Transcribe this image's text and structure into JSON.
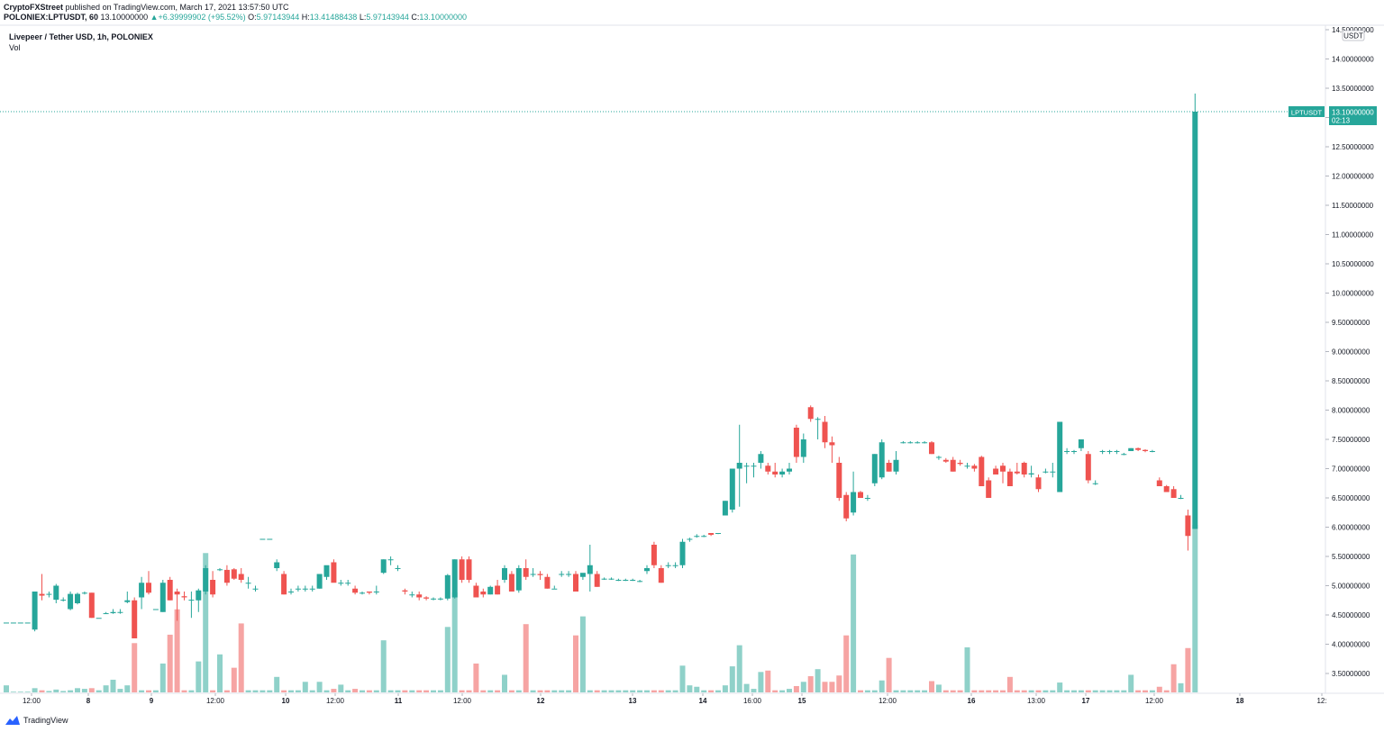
{
  "header": {
    "author": "CryptoFXStreet",
    "published": "published on TradingView.com, March 17, 2021 13:57:50 UTC"
  },
  "ohlc": {
    "symbol": "POLONIEX:LPTUSDT, 60",
    "last": "13.10000000",
    "change": "+6.39999902 (+95.52%)",
    "o_label": "O:",
    "o": "5.97143944",
    "h_label": "H:",
    "h": "13.41488438",
    "l_label": "L:",
    "l": "5.97143944",
    "c_label": "C:",
    "c": "13.10000000"
  },
  "legend": {
    "title": "Livepeer / Tether USD, 1h, POLONIEX",
    "volume_label": "Vol"
  },
  "footer": {
    "brand": "TradingView"
  },
  "price_tag": {
    "symbol": "LPTUSDT",
    "price": "13.10000000",
    "countdown": "02:13"
  },
  "colors": {
    "up": "#26a69a",
    "down": "#ef5350",
    "vol_up": "#8fd1c9",
    "vol_down": "#f6a4a3",
    "axis_text": "#131722"
  },
  "chart_data": {
    "type": "candlestick",
    "currency_label": "USDT",
    "y_ticks": [
      "14.50000000",
      "14.00000000",
      "13.50000000",
      "13.00000000",
      "12.50000000",
      "12.00000000",
      "11.50000000",
      "11.00000000",
      "10.50000000",
      "10.00000000",
      "9.50000000",
      "9.00000000",
      "8.50000000",
      "8.00000000",
      "7.50000000",
      "7.00000000",
      "6.50000000",
      "6.00000000",
      "5.50000000",
      "5.00000000",
      "4.50000000",
      "4.00000000",
      "3.50000000"
    ],
    "x_ticks": [
      "12:00",
      "8",
      "9",
      "12:00",
      "10",
      "12:00",
      "11",
      "12:00",
      "12",
      "13",
      "14",
      "16:00",
      "15",
      "12:00",
      "16",
      "13:00",
      "17",
      "12:00",
      "18",
      "12:"
    ],
    "series": [
      {
        "o": 4.37,
        "h": 4.37,
        "l": 4.37,
        "c": 4.37,
        "v": 1
      },
      {
        "o": 4.37,
        "h": 4.37,
        "l": 4.37,
        "c": 4.37,
        "v": 0.1
      },
      {
        "o": 4.37,
        "h": 4.37,
        "l": 4.37,
        "c": 4.37,
        "v": 0.1
      },
      {
        "o": 4.37,
        "h": 4.37,
        "l": 4.37,
        "c": 4.37,
        "v": 0.1
      },
      {
        "o": 4.25,
        "h": 4.9,
        "l": 4.22,
        "c": 4.9,
        "v": 0.6
      },
      {
        "o": 4.86,
        "h": 5.2,
        "l": 4.75,
        "c": 4.83,
        "v": 0.3
      },
      {
        "o": 4.86,
        "h": 4.9,
        "l": 4.8,
        "c": 4.86,
        "v": 0.2
      },
      {
        "o": 4.76,
        "h": 5.03,
        "l": 4.7,
        "c": 5.0,
        "v": 0.4
      },
      {
        "o": 4.76,
        "h": 4.8,
        "l": 4.73,
        "c": 4.76,
        "v": 0.2
      },
      {
        "o": 4.6,
        "h": 4.9,
        "l": 4.58,
        "c": 4.86,
        "v": 0.3
      },
      {
        "o": 4.7,
        "h": 4.88,
        "l": 4.68,
        "c": 4.86,
        "v": 0.6
      },
      {
        "o": 4.88,
        "h": 4.9,
        "l": 4.85,
        "c": 4.88,
        "v": 0.5
      },
      {
        "o": 4.88,
        "h": 4.88,
        "l": 4.45,
        "c": 4.45,
        "v": 0.6
      },
      {
        "o": 4.45,
        "h": 4.45,
        "l": 4.45,
        "c": 4.45,
        "v": 0.3
      },
      {
        "o": 4.53,
        "h": 4.55,
        "l": 4.52,
        "c": 4.53,
        "v": 1
      },
      {
        "o": 4.53,
        "h": 4.6,
        "l": 4.52,
        "c": 4.55,
        "v": 1.8
      },
      {
        "o": 4.55,
        "h": 4.6,
        "l": 4.52,
        "c": 4.55,
        "v": 0.5
      },
      {
        "o": 4.72,
        "h": 4.9,
        "l": 4.7,
        "c": 4.75,
        "v": 1
      },
      {
        "o": 4.75,
        "h": 4.8,
        "l": 4.1,
        "c": 4.1,
        "v": 7
      },
      {
        "o": 4.8,
        "h": 5.15,
        "l": 4.6,
        "c": 5.05,
        "v": 0.3
      },
      {
        "o": 5.05,
        "h": 5.25,
        "l": 4.85,
        "c": 4.88,
        "v": 0.3
      },
      {
        "o": 4.6,
        "h": 4.6,
        "l": 4.6,
        "c": 4.6,
        "v": 0.3
      },
      {
        "o": 4.55,
        "h": 5.1,
        "l": 4.55,
        "c": 5.05,
        "v": 4.1
      },
      {
        "o": 5.1,
        "h": 5.15,
        "l": 4.75,
        "c": 4.75,
        "v": 8.2
      },
      {
        "o": 4.9,
        "h": 4.95,
        "l": 4.4,
        "c": 4.85,
        "v": 11.8
      },
      {
        "o": 4.82,
        "h": 4.9,
        "l": 4.75,
        "c": 4.8,
        "v": 0.3
      },
      {
        "o": 4.75,
        "h": 4.9,
        "l": 4.45,
        "c": 4.76,
        "v": 0.3
      },
      {
        "o": 4.75,
        "h": 4.95,
        "l": 4.55,
        "c": 4.92,
        "v": 4.4
      },
      {
        "o": 4.9,
        "h": 5.35,
        "l": 4.85,
        "c": 5.3,
        "v": 19.8
      },
      {
        "o": 5.1,
        "h": 5.25,
        "l": 4.8,
        "c": 4.85,
        "v": 0.3
      },
      {
        "o": 5.28,
        "h": 5.3,
        "l": 5.25,
        "c": 5.28,
        "v": 5.4
      },
      {
        "o": 5.27,
        "h": 5.35,
        "l": 5.0,
        "c": 5.05,
        "v": 0.3
      },
      {
        "o": 5.28,
        "h": 5.3,
        "l": 5.1,
        "c": 5.12,
        "v": 3.5
      },
      {
        "o": 5.2,
        "h": 5.3,
        "l": 5.05,
        "c": 5.1,
        "v": 9.8
      },
      {
        "o": 5.05,
        "h": 5.15,
        "l": 4.95,
        "c": 5.05,
        "v": 0.3
      },
      {
        "o": 4.95,
        "h": 5.0,
        "l": 4.9,
        "c": 4.95,
        "v": 0.3
      },
      {
        "o": 5.8,
        "h": 5.8,
        "l": 5.8,
        "c": 5.8,
        "v": 0.3
      },
      {
        "o": 5.8,
        "h": 5.8,
        "l": 5.8,
        "c": 5.8,
        "v": 0.3
      },
      {
        "o": 5.3,
        "h": 5.45,
        "l": 5.25,
        "c": 5.4,
        "v": 2.2
      },
      {
        "o": 5.2,
        "h": 5.25,
        "l": 4.85,
        "c": 4.85,
        "v": 0.3
      },
      {
        "o": 4.9,
        "h": 4.95,
        "l": 4.85,
        "c": 4.9,
        "v": 0.3
      },
      {
        "o": 4.95,
        "h": 5.0,
        "l": 4.9,
        "c": 4.95,
        "v": 0.3
      },
      {
        "o": 4.95,
        "h": 5.0,
        "l": 4.9,
        "c": 4.95,
        "v": 1.5
      },
      {
        "o": 4.95,
        "h": 5.0,
        "l": 4.9,
        "c": 4.95,
        "v": 0.3
      },
      {
        "o": 4.95,
        "h": 5.2,
        "l": 4.95,
        "c": 5.2,
        "v": 1.5
      },
      {
        "o": 5.15,
        "h": 5.3,
        "l": 5.1,
        "c": 5.35,
        "v": 0.3
      },
      {
        "o": 5.4,
        "h": 5.45,
        "l": 5.1,
        "c": 5.05,
        "v": 0.5
      },
      {
        "o": 5.05,
        "h": 5.1,
        "l": 5.0,
        "c": 5.05,
        "v": 1.1
      },
      {
        "o": 5.05,
        "h": 5.1,
        "l": 5.0,
        "c": 5.05,
        "v": 0.3
      },
      {
        "o": 4.95,
        "h": 5.0,
        "l": 4.85,
        "c": 4.88,
        "v": 0.5
      },
      {
        "o": 4.88,
        "h": 4.9,
        "l": 4.85,
        "c": 4.88,
        "v": 0.3
      },
      {
        "o": 4.9,
        "h": 4.9,
        "l": 4.85,
        "c": 4.88,
        "v": 0.3
      },
      {
        "o": 4.9,
        "h": 5.0,
        "l": 4.85,
        "c": 4.9,
        "v": 0.3
      },
      {
        "o": 5.22,
        "h": 5.45,
        "l": 5.2,
        "c": 5.45,
        "v": 7.4
      },
      {
        "o": 5.45,
        "h": 5.5,
        "l": 5.35,
        "c": 5.45,
        "v": 0.3
      },
      {
        "o": 5.3,
        "h": 5.35,
        "l": 5.25,
        "c": 5.3,
        "v": 0.3
      },
      {
        "o": 4.92,
        "h": 4.95,
        "l": 4.85,
        "c": 4.9,
        "v": 0.3
      },
      {
        "o": 4.85,
        "h": 4.9,
        "l": 4.8,
        "c": 4.85,
        "v": 0.3
      },
      {
        "o": 4.85,
        "h": 4.9,
        "l": 4.75,
        "c": 4.8,
        "v": 0.3
      },
      {
        "o": 4.8,
        "h": 4.82,
        "l": 4.75,
        "c": 4.78,
        "v": 0.3
      },
      {
        "o": 4.78,
        "h": 4.8,
        "l": 4.75,
        "c": 4.78,
        "v": 0.3
      },
      {
        "o": 4.78,
        "h": 4.8,
        "l": 4.75,
        "c": 4.78,
        "v": 0.3
      },
      {
        "o": 4.78,
        "h": 5.2,
        "l": 4.75,
        "c": 5.18,
        "v": 9.3
      },
      {
        "o": 4.8,
        "h": 5.45,
        "l": 4.78,
        "c": 5.45,
        "v": 14.2
      },
      {
        "o": 5.45,
        "h": 5.5,
        "l": 5.05,
        "c": 5.1,
        "v": 0.3
      },
      {
        "o": 5.45,
        "h": 5.5,
        "l": 5.05,
        "c": 5.1,
        "v": 0.3
      },
      {
        "o": 5.0,
        "h": 5.05,
        "l": 4.8,
        "c": 4.8,
        "v": 4.1
      },
      {
        "o": 4.9,
        "h": 4.95,
        "l": 4.8,
        "c": 4.85,
        "v": 0.3
      },
      {
        "o": 4.85,
        "h": 5.0,
        "l": 4.85,
        "c": 4.98,
        "v": 0.3
      },
      {
        "o": 5.0,
        "h": 5.1,
        "l": 4.85,
        "c": 4.85,
        "v": 0.3
      },
      {
        "o": 5.1,
        "h": 5.35,
        "l": 5.05,
        "c": 5.3,
        "v": 2.5
      },
      {
        "o": 5.2,
        "h": 5.25,
        "l": 4.9,
        "c": 4.9,
        "v": 0.3
      },
      {
        "o": 4.92,
        "h": 5.35,
        "l": 4.88,
        "c": 5.3,
        "v": 0.3
      },
      {
        "o": 5.3,
        "h": 5.45,
        "l": 5.1,
        "c": 5.15,
        "v": 9.7
      },
      {
        "o": 5.2,
        "h": 5.3,
        "l": 5.15,
        "c": 5.2,
        "v": 0.3
      },
      {
        "o": 5.2,
        "h": 5.25,
        "l": 5.1,
        "c": 5.18,
        "v": 0.3
      },
      {
        "o": 5.15,
        "h": 5.2,
        "l": 4.95,
        "c": 4.95,
        "v": 0.3
      },
      {
        "o": 4.95,
        "h": 5.0,
        "l": 4.95,
        "c": 4.95,
        "v": 0.3
      },
      {
        "o": 5.2,
        "h": 5.25,
        "l": 5.15,
        "c": 5.2,
        "v": 0.3
      },
      {
        "o": 5.2,
        "h": 5.25,
        "l": 5.15,
        "c": 5.2,
        "v": 0.3
      },
      {
        "o": 5.2,
        "h": 5.25,
        "l": 4.9,
        "c": 4.9,
        "v": 8.1
      },
      {
        "o": 5.15,
        "h": 5.2,
        "l": 5.1,
        "c": 5.22,
        "v": 10.8
      },
      {
        "o": 5.2,
        "h": 5.7,
        "l": 4.9,
        "c": 5.35,
        "v": 0.3
      },
      {
        "o": 5.2,
        "h": 5.25,
        "l": 4.98,
        "c": 4.98,
        "v": 0.3
      },
      {
        "o": 5.12,
        "h": 5.14,
        "l": 5.1,
        "c": 5.12,
        "v": 0.3
      },
      {
        "o": 5.12,
        "h": 5.14,
        "l": 5.1,
        "c": 5.12,
        "v": 0.3
      },
      {
        "o": 5.1,
        "h": 5.12,
        "l": 5.08,
        "c": 5.1,
        "v": 0.3
      },
      {
        "o": 5.1,
        "h": 5.12,
        "l": 5.08,
        "c": 5.1,
        "v": 0.3
      },
      {
        "o": 5.1,
        "h": 5.12,
        "l": 5.08,
        "c": 5.1,
        "v": 0.3
      },
      {
        "o": 5.08,
        "h": 5.1,
        "l": 5.06,
        "c": 5.08,
        "v": 0.3
      },
      {
        "o": 5.25,
        "h": 5.35,
        "l": 5.2,
        "c": 5.3,
        "v": 0.3
      },
      {
        "o": 5.7,
        "h": 5.75,
        "l": 5.3,
        "c": 5.35,
        "v": 0.3
      },
      {
        "o": 5.3,
        "h": 5.35,
        "l": 5.05,
        "c": 5.05,
        "v": 0.3
      },
      {
        "o": 5.35,
        "h": 5.4,
        "l": 5.3,
        "c": 5.35,
        "v": 0.3
      },
      {
        "o": 5.35,
        "h": 5.4,
        "l": 5.3,
        "c": 5.35,
        "v": 0.3
      },
      {
        "o": 5.35,
        "h": 5.8,
        "l": 5.3,
        "c": 5.75,
        "v": 3.8
      },
      {
        "o": 5.8,
        "h": 5.82,
        "l": 5.75,
        "c": 5.8,
        "v": 1
      },
      {
        "o": 5.85,
        "h": 5.88,
        "l": 5.82,
        "c": 5.85,
        "v": 0.8
      },
      {
        "o": 5.85,
        "h": 5.87,
        "l": 5.83,
        "c": 5.85,
        "v": 0.3
      },
      {
        "o": 5.9,
        "h": 5.9,
        "l": 5.85,
        "c": 5.87,
        "v": 0.3
      },
      {
        "o": 5.9,
        "h": 5.9,
        "l": 5.88,
        "c": 5.9,
        "v": 0.3
      },
      {
        "o": 6.2,
        "h": 6.45,
        "l": 6.2,
        "c": 6.45,
        "v": 1
      },
      {
        "o": 6.3,
        "h": 7.0,
        "l": 6.25,
        "c": 7.0,
        "v": 3.7
      },
      {
        "o": 7.0,
        "h": 7.75,
        "l": 6.35,
        "c": 7.1,
        "v": 6.7
      },
      {
        "o": 7.05,
        "h": 7.1,
        "l": 6.75,
        "c": 7.05,
        "v": 1.2
      },
      {
        "o": 7.05,
        "h": 7.1,
        "l": 6.85,
        "c": 7.05,
        "v": 0.5
      },
      {
        "o": 7.1,
        "h": 7.3,
        "l": 7.0,
        "c": 7.25,
        "v": 2.9
      },
      {
        "o": 7.05,
        "h": 7.1,
        "l": 6.9,
        "c": 6.95,
        "v": 3.1
      },
      {
        "o": 6.95,
        "h": 7.1,
        "l": 6.85,
        "c": 6.9,
        "v": 0.3
      },
      {
        "o": 6.9,
        "h": 7.0,
        "l": 6.85,
        "c": 6.95,
        "v": 0.3
      },
      {
        "o": 6.95,
        "h": 7.1,
        "l": 6.9,
        "c": 7.0,
        "v": 0.5
      },
      {
        "o": 7.7,
        "h": 7.75,
        "l": 7.1,
        "c": 7.2,
        "v": 0.9
      },
      {
        "o": 7.2,
        "h": 7.6,
        "l": 7.1,
        "c": 7.5,
        "v": 1.5
      },
      {
        "o": 8.05,
        "h": 8.08,
        "l": 7.8,
        "c": 7.85,
        "v": 2.3
      },
      {
        "o": 7.85,
        "h": 7.88,
        "l": 7.5,
        "c": 7.85,
        "v": 3.3
      },
      {
        "o": 7.8,
        "h": 7.9,
        "l": 7.35,
        "c": 7.45,
        "v": 1.5
      },
      {
        "o": 7.45,
        "h": 7.55,
        "l": 7.1,
        "c": 7.4,
        "v": 1.5
      },
      {
        "o": 7.1,
        "h": 7.2,
        "l": 6.45,
        "c": 6.5,
        "v": 2.4
      },
      {
        "o": 6.55,
        "h": 6.6,
        "l": 6.1,
        "c": 6.15,
        "v": 8.1
      },
      {
        "o": 6.25,
        "h": 6.95,
        "l": 6.2,
        "c": 6.6,
        "v": 19.6
      },
      {
        "o": 6.6,
        "h": 6.62,
        "l": 6.5,
        "c": 6.5,
        "v": 0.3
      },
      {
        "o": 6.5,
        "h": 6.55,
        "l": 6.45,
        "c": 6.5,
        "v": 0.3
      },
      {
        "o": 6.75,
        "h": 7.25,
        "l": 6.7,
        "c": 7.25,
        "v": 0.3
      },
      {
        "o": 6.85,
        "h": 7.5,
        "l": 6.82,
        "c": 7.45,
        "v": 1.7
      },
      {
        "o": 7.1,
        "h": 7.15,
        "l": 6.95,
        "c": 6.95,
        "v": 4.9
      },
      {
        "o": 6.95,
        "h": 7.3,
        "l": 6.9,
        "c": 7.15,
        "v": 0.3
      },
      {
        "o": 7.45,
        "h": 7.47,
        "l": 7.43,
        "c": 7.45,
        "v": 0.3
      },
      {
        "o": 7.45,
        "h": 7.47,
        "l": 7.43,
        "c": 7.45,
        "v": 0.3
      },
      {
        "o": 7.45,
        "h": 7.47,
        "l": 7.43,
        "c": 7.45,
        "v": 0.3
      },
      {
        "o": 7.45,
        "h": 7.47,
        "l": 7.43,
        "c": 7.45,
        "v": 0.3
      },
      {
        "o": 7.45,
        "h": 7.47,
        "l": 7.25,
        "c": 7.25,
        "v": 1.6
      },
      {
        "o": 7.2,
        "h": 7.22,
        "l": 7.15,
        "c": 7.2,
        "v": 1.1
      },
      {
        "o": 7.15,
        "h": 7.18,
        "l": 7.1,
        "c": 7.12,
        "v": 0.3
      },
      {
        "o": 7.15,
        "h": 7.2,
        "l": 6.95,
        "c": 6.95,
        "v": 0.3
      },
      {
        "o": 7.1,
        "h": 7.15,
        "l": 7.05,
        "c": 7.08,
        "v": 0.3
      },
      {
        "o": 7.05,
        "h": 7.1,
        "l": 7.0,
        "c": 7.05,
        "v": 6.4
      },
      {
        "o": 7.05,
        "h": 7.08,
        "l": 6.95,
        "c": 7.0,
        "v": 0.3
      },
      {
        "o": 7.2,
        "h": 7.22,
        "l": 6.7,
        "c": 6.7,
        "v": 0.3
      },
      {
        "o": 6.8,
        "h": 6.85,
        "l": 6.5,
        "c": 6.5,
        "v": 0.3
      },
      {
        "o": 7.0,
        "h": 7.05,
        "l": 6.9,
        "c": 6.9,
        "v": 0.3
      },
      {
        "o": 7.05,
        "h": 7.1,
        "l": 6.75,
        "c": 6.95,
        "v": 0.3
      },
      {
        "o": 6.95,
        "h": 7.0,
        "l": 6.7,
        "c": 6.7,
        "v": 2.2
      },
      {
        "o": 6.95,
        "h": 7.1,
        "l": 6.9,
        "c": 6.92,
        "v": 0.3
      },
      {
        "o": 7.1,
        "h": 7.12,
        "l": 6.85,
        "c": 6.9,
        "v": 0.3
      },
      {
        "o": 6.9,
        "h": 7.05,
        "l": 6.85,
        "c": 6.92,
        "v": 0.3
      },
      {
        "o": 6.85,
        "h": 6.9,
        "l": 6.6,
        "c": 6.65,
        "v": 0.3
      },
      {
        "o": 6.95,
        "h": 7.0,
        "l": 6.92,
        "c": 6.95,
        "v": 0.3
      },
      {
        "o": 6.95,
        "h": 7.1,
        "l": 6.85,
        "c": 6.95,
        "v": 0.3
      },
      {
        "o": 6.6,
        "h": 7.8,
        "l": 6.6,
        "c": 7.8,
        "v": 1.4
      },
      {
        "o": 7.3,
        "h": 7.35,
        "l": 7.25,
        "c": 7.3,
        "v": 0.3
      },
      {
        "o": 7.3,
        "h": 7.32,
        "l": 7.25,
        "c": 7.3,
        "v": 0.3
      },
      {
        "o": 7.35,
        "h": 7.45,
        "l": 7.3,
        "c": 7.5,
        "v": 0.3
      },
      {
        "o": 7.25,
        "h": 7.3,
        "l": 6.75,
        "c": 6.8,
        "v": 0.3
      },
      {
        "o": 6.75,
        "h": 6.8,
        "l": 6.72,
        "c": 6.75,
        "v": 0.3
      },
      {
        "o": 7.3,
        "h": 7.32,
        "l": 7.25,
        "c": 7.3,
        "v": 0.3
      },
      {
        "o": 7.3,
        "h": 7.32,
        "l": 7.25,
        "c": 7.3,
        "v": 0.3
      },
      {
        "o": 7.3,
        "h": 7.32,
        "l": 7.25,
        "c": 7.3,
        "v": 0.3
      },
      {
        "o": 7.25,
        "h": 7.27,
        "l": 7.23,
        "c": 7.25,
        "v": 0.3
      },
      {
        "o": 7.3,
        "h": 7.35,
        "l": 7.3,
        "c": 7.35,
        "v": 2.5
      },
      {
        "o": 7.35,
        "h": 7.36,
        "l": 7.3,
        "c": 7.32,
        "v": 0.3
      },
      {
        "o": 7.32,
        "h": 7.33,
        "l": 7.28,
        "c": 7.3,
        "v": 0.3
      },
      {
        "o": 7.3,
        "h": 7.32,
        "l": 7.28,
        "c": 7.3,
        "v": 0.3
      },
      {
        "o": 6.8,
        "h": 6.85,
        "l": 6.7,
        "c": 6.7,
        "v": 0.8
      },
      {
        "o": 6.7,
        "h": 6.72,
        "l": 6.6,
        "c": 6.6,
        "v": 0.3
      },
      {
        "o": 6.65,
        "h": 6.7,
        "l": 6.5,
        "c": 6.5,
        "v": 4
      },
      {
        "o": 6.5,
        "h": 6.55,
        "l": 6.48,
        "c": 6.5,
        "v": 1.3
      },
      {
        "o": 6.2,
        "h": 6.3,
        "l": 5.6,
        "c": 5.85,
        "v": 6.3
      },
      {
        "o": 5.97,
        "h": 13.41,
        "l": 5.97,
        "c": 13.1,
        "v": 23.8
      }
    ]
  }
}
